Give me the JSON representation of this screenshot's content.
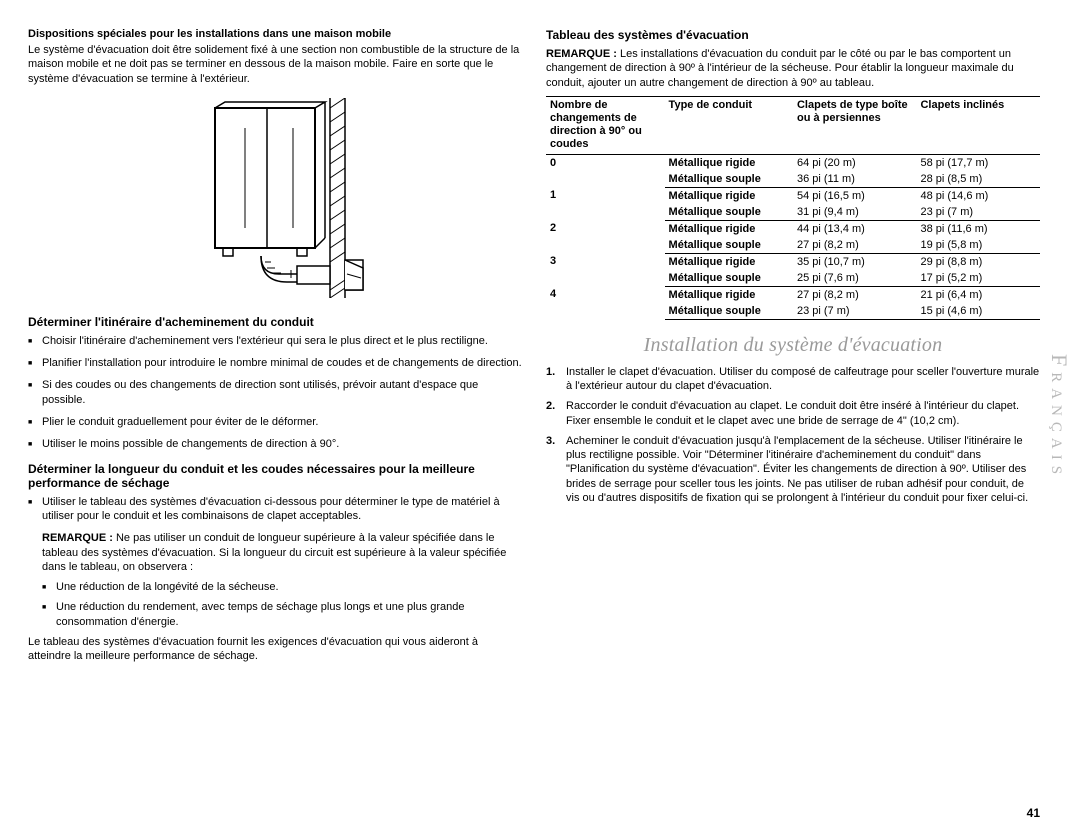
{
  "page_number": "41",
  "side_language": "Français",
  "left": {
    "mobile_home_title": "Dispositions spéciales pour les installations dans une maison mobile",
    "mobile_home_text": "Le système d'évacuation doit être solidement fixé à une section non combustible de la structure de la maison mobile et ne doit pas se terminer en dessous de la maison mobile. Faire en sorte que le système d'évacuation se termine à l'extérieur.",
    "route_title": "Déterminer l'itinéraire d'acheminement du conduit",
    "route_items": [
      "Choisir l'itinéraire d'acheminement vers l'extérieur qui sera le plus direct et le plus rectiligne.",
      "Planifier l'installation pour introduire le nombre minimal de coudes et de changements de direction.",
      "Si des coudes ou des changements de direction sont utilisés, prévoir autant d'espace que possible.",
      "Plier le conduit graduellement pour éviter de le déformer.",
      "Utiliser le moins possible de changements de direction à 90°."
    ],
    "length_title": "Déterminer la longueur du conduit et les coudes nécessaires pour la meilleure performance de séchage",
    "length_bullet": "Utiliser le tableau des systèmes d'évacuation ci-dessous pour déterminer le type de matériel à utiliser pour le conduit et les combinaisons de clapet acceptables.",
    "remark_label": "REMARQUE :",
    "remark_text": "Ne pas utiliser un conduit de longueur supérieure à la valeur spécifiée dans le tableau des systèmes d'évacuation. Si la longueur du circuit est supérieure à la valeur spécifiée dans le tableau, on observera :",
    "remark_sub": [
      "Une réduction de la longévité de la sécheuse.",
      "Une réduction du rendement, avec temps de séchage plus longs et une plus grande consommation d'énergie."
    ],
    "closing": "Le tableau des systèmes d'évacuation fournit les exigences d'évacuation qui vous aideront à atteindre la meilleure performance de séchage."
  },
  "right": {
    "table_title": "Tableau des systèmes d'évacuation",
    "table_remark_label": "REMARQUE :",
    "table_remark_text": "Les installations d'évacuation du conduit par le côté ou par le bas comportent un changement de direction à 90º à l'intérieur de la sécheuse. Pour établir la longueur maximale du conduit, ajouter un autre changement de direction à 90º au tableau.",
    "headers": {
      "col1": "Nombre de changements de direction à 90° ou coudes",
      "col2": "Type de conduit",
      "col3": "Clapets de type boîte ou à persiennes",
      "col4": "Clapets inclinés"
    },
    "conduit_rigid": "Métallique rigide",
    "conduit_flex": "Métallique souple",
    "rows": [
      {
        "num": "0",
        "rigid": {
          "box": "64 pi (20 m)",
          "ang": "58 pi (17,7 m)"
        },
        "flex": {
          "box": "36 pi (11 m)",
          "ang": "28 pi (8,5 m)"
        }
      },
      {
        "num": "1",
        "rigid": {
          "box": "54 pi (16,5 m)",
          "ang": "48 pi (14,6 m)"
        },
        "flex": {
          "box": "31 pi (9,4 m)",
          "ang": "23 pi (7 m)"
        }
      },
      {
        "num": "2",
        "rigid": {
          "box": "44 pi (13,4 m)",
          "ang": "38 pi (11,6 m)"
        },
        "flex": {
          "box": "27 pi (8,2 m)",
          "ang": "19 pi (5,8 m)"
        }
      },
      {
        "num": "3",
        "rigid": {
          "box": "35 pi (10,7 m)",
          "ang": "29 pi (8,8 m)"
        },
        "flex": {
          "box": "25 pi (7,6 m)",
          "ang": "17 pi (5,2 m)"
        }
      },
      {
        "num": "4",
        "rigid": {
          "box": "27 pi (8,2 m)",
          "ang": "21 pi (6,4 m)"
        },
        "flex": {
          "box": "23 pi (7 m)",
          "ang": "15 pi (4,6 m)"
        }
      }
    ],
    "install_title": "Installation du système d'évacuation",
    "install_steps": [
      "Installer le clapet d'évacuation. Utiliser du composé de calfeutrage pour sceller l'ouverture murale à l'extérieur autour du clapet d'évacuation.",
      "Raccorder le conduit d'évacuation au clapet. Le conduit doit être inséré à l'intérieur du clapet. Fixer ensemble le conduit et le clapet avec une bride de serrage de 4\" (10,2 cm).",
      "Acheminer le conduit d'évacuation jusqu'à l'emplacement de la sécheuse. Utiliser l'itinéraire le plus rectiligne possible. Voir \"Déterminer l'itinéraire d'acheminement du conduit\" dans \"Planification du système d'évacuation\". Éviter les changements de direction à 90º. Utiliser des brides de serrage pour sceller tous les joints. Ne pas utiliser de ruban adhésif pour conduit, de vis ou d'autres dispositifs de fixation qui se prolongent à l'intérieur du conduit pour fixer celui-ci."
    ]
  },
  "colors": {
    "text": "#000000",
    "muted": "#9a9a9a",
    "side": "#b8b8b8"
  }
}
